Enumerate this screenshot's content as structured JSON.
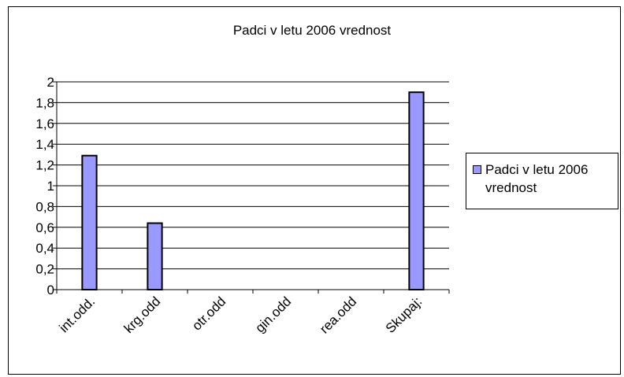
{
  "chart_data": {
    "type": "bar",
    "title": "Padci v letu 2006 vrednost",
    "categories": [
      "int.odd.",
      "krg.odd",
      "otr.odd",
      "gin.odd",
      "rea.odd",
      "Skupaj:"
    ],
    "series": [
      {
        "name": "Padci v letu 2006 vrednost",
        "values": [
          1.29,
          0.64,
          0,
          0,
          0,
          1.9
        ]
      }
    ],
    "ylim": [
      0,
      2
    ],
    "yticks": [
      0,
      0.2,
      0.4,
      0.6,
      0.8,
      1,
      1.2,
      1.4,
      1.6,
      1.8,
      2
    ],
    "ytick_labels": [
      "0",
      "0,2",
      "0,4",
      "0,6",
      "0,8",
      "1",
      "1,2",
      "1,4",
      "1,6",
      "1,8",
      "2"
    ],
    "grid": true,
    "legend_position": "right",
    "bar_color": "#9999ff"
  }
}
